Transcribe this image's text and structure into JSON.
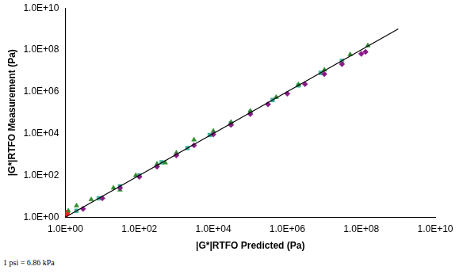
{
  "chart_data": {
    "type": "scatter",
    "x_label": "|G*|RTFO Predicted (Pa)",
    "y_label": "|G*|RTFO Measurement (Pa)",
    "annotation": "1 psi = 6.86 kPa",
    "log": true,
    "grid": false,
    "xlim": [
      1,
      10000000000
    ],
    "ylim": [
      1,
      10000000000
    ],
    "xticks": [
      {
        "value": 1,
        "label": "1.0E+00"
      },
      {
        "value": 100,
        "label": "1.0E+02"
      },
      {
        "value": 10000,
        "label": "1.0E+04"
      },
      {
        "value": 1000000,
        "label": "1.0E+06"
      },
      {
        "value": 100000000,
        "label": "1.0E+08"
      },
      {
        "value": 10000000000,
        "label": "1.0E+10"
      }
    ],
    "yticks": [
      {
        "value": 1,
        "label": "1.0E+00"
      },
      {
        "value": 100,
        "label": "1.0E+02"
      },
      {
        "value": 10000,
        "label": "1.0E+04"
      },
      {
        "value": 1000000,
        "label": "1.0E+06"
      },
      {
        "value": 100000000,
        "label": "1.0E+08"
      },
      {
        "value": 10000000000,
        "label": "1.0E+10"
      }
    ],
    "series": [
      {
        "color": "#8b1a89",
        "marker": "diamond",
        "x": [
          3,
          10,
          30,
          100,
          300,
          1000,
          3000,
          10000,
          30000,
          100000,
          300000,
          1000000,
          3000000,
          10000000,
          30000000,
          100000000,
          130000000
        ],
        "y": [
          2.5,
          8,
          25,
          85,
          260,
          900,
          2700,
          9000,
          26000,
          85000,
          250000,
          800000,
          2300000,
          7000000,
          21000000,
          65000000,
          80000000
        ]
      },
      {
        "color": "#2e8b2e",
        "marker": "triangle",
        "x": [
          1.2,
          2,
          5,
          20,
          30,
          80,
          300,
          500,
          1000,
          3000,
          10000,
          30000,
          100000,
          500000,
          2000000,
          10000000,
          50000000,
          150000000
        ],
        "y": [
          2,
          3.5,
          7,
          25,
          20,
          100,
          350,
          400,
          1200,
          5000,
          13000,
          35000,
          120000,
          550000,
          2200000,
          11000000,
          60000000,
          160000000
        ]
      },
      {
        "color": "#3cb39a",
        "marker": "square",
        "x": [
          2,
          8,
          30,
          100,
          400,
          2000,
          8000,
          30000,
          100000,
          400000,
          2000000,
          8000000,
          30000000
        ],
        "y": [
          2,
          8,
          30,
          100,
          420,
          2000,
          8500,
          30000,
          100000,
          400000,
          2000000,
          8000000,
          30000000
        ]
      },
      {
        "color": "#ff2020",
        "marker": "circle",
        "x": [
          1,
          1.1
        ],
        "y": [
          1.3,
          1.6
        ]
      },
      {
        "type": "line",
        "color": "#000000",
        "line_style": "solid",
        "x": [
          1,
          1000000000
        ],
        "y": [
          1,
          1000000000
        ]
      }
    ]
  }
}
